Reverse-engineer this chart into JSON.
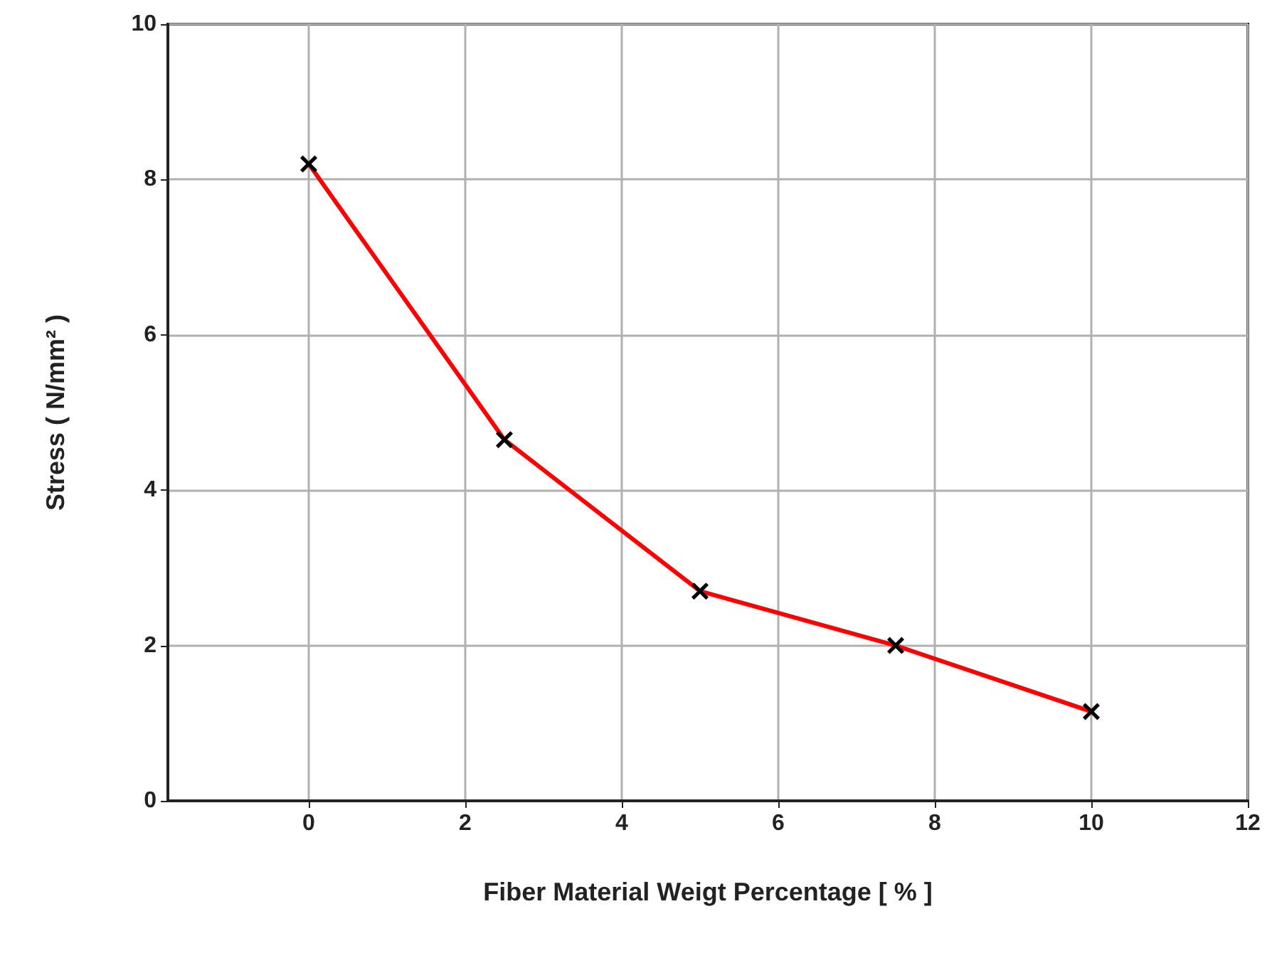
{
  "chart_data": {
    "type": "line",
    "xlabel": "Fiber Material Weigt Percentage [ % ]",
    "ylabel": "Stress ( N/mm² )",
    "x": [
      0,
      2.5,
      5,
      7.5,
      10
    ],
    "series": [
      {
        "color": "#ff0000",
        "values": [
          8.2,
          4.65,
          2.7,
          2.0,
          1.15
        ]
      }
    ],
    "xlim": [
      -1.8,
      12
    ],
    "xticks": [
      0,
      2,
      4,
      6,
      8,
      10,
      12
    ],
    "ylim": [
      0,
      10
    ],
    "yticks": [
      0,
      2,
      4,
      6,
      8,
      10
    ],
    "grid": true,
    "marker": "cross",
    "line_style": "solid"
  }
}
